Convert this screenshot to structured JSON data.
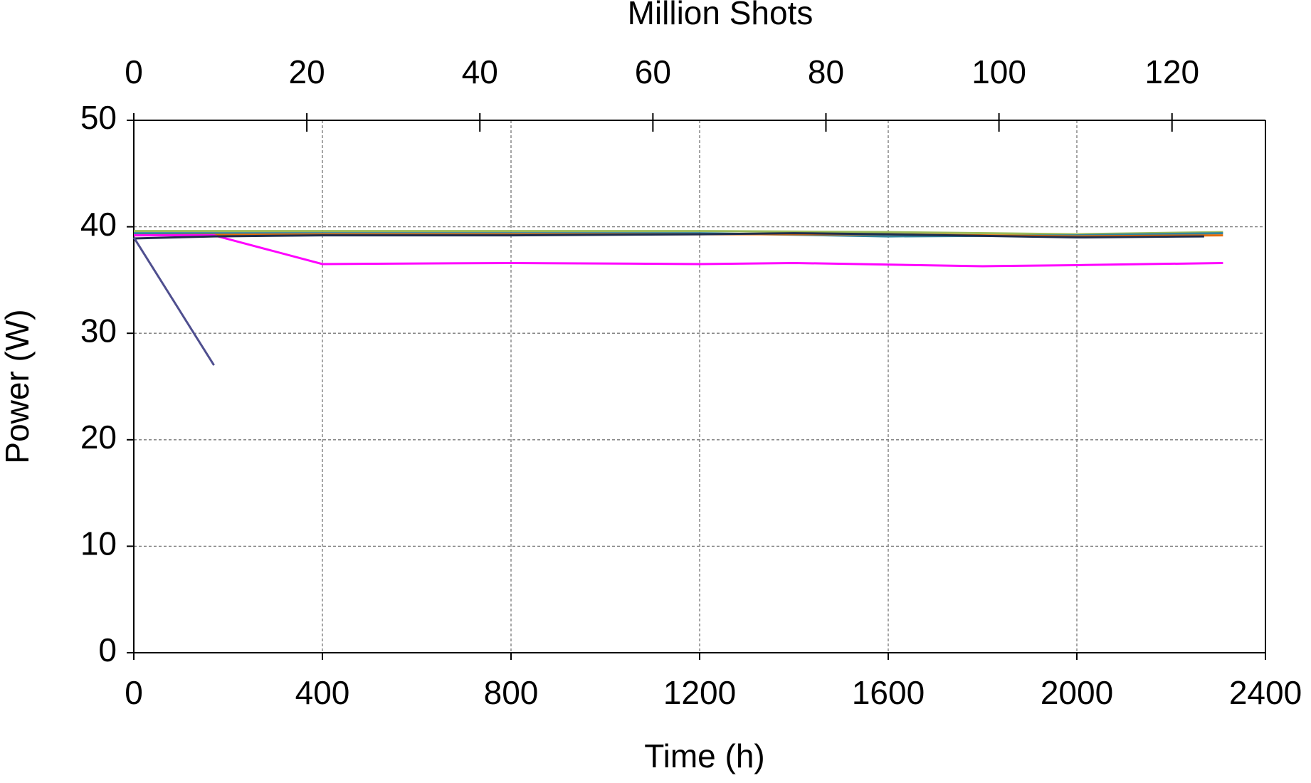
{
  "chart_data": {
    "type": "line",
    "x_label": "Time (h)",
    "y_label": "Power (W)",
    "x2_label": "Million Shots",
    "xlim": [
      0,
      2400
    ],
    "xticks": [
      0,
      400,
      800,
      1200,
      1600,
      2000,
      2400
    ],
    "x2lim": [
      0,
      130.8
    ],
    "x2ticks": [
      0,
      20,
      40,
      60,
      80,
      100,
      120
    ],
    "ylim": [
      0,
      50
    ],
    "yticks": [
      0,
      10,
      20,
      30,
      40,
      50
    ],
    "grid": true,
    "series": [
      {
        "color": "#9bbb59",
        "x": [
          0,
          400,
          800,
          1200,
          1600,
          2000,
          2310
        ],
        "values": [
          39.6,
          39.6,
          39.6,
          39.6,
          39.5,
          39.3,
          39.5
        ]
      },
      {
        "color": "#31859c",
        "x": [
          0,
          400,
          800,
          1200,
          1600,
          2000,
          2310
        ],
        "values": [
          39.4,
          39.4,
          39.4,
          39.4,
          39.1,
          39.2,
          39.4
        ]
      },
      {
        "color": "#e36c0a",
        "x": [
          0,
          400,
          800,
          1200,
          1600,
          2000,
          2310
        ],
        "values": [
          39.2,
          39.3,
          39.3,
          39.3,
          39.3,
          39.1,
          39.2
        ]
      },
      {
        "color": "#ff00ff",
        "x": [
          0,
          170,
          400,
          800,
          1200,
          1400,
          1800,
          2000,
          2310
        ],
        "values": [
          39.2,
          39.2,
          36.5,
          36.6,
          36.5,
          36.6,
          36.3,
          36.4,
          36.6
        ]
      },
      {
        "color": "#1f2d4d",
        "x": [
          0,
          170,
          400,
          800,
          1200,
          1400,
          1600,
          2000,
          2270
        ],
        "values": [
          38.9,
          39.1,
          39.2,
          39.2,
          39.3,
          39.4,
          39.3,
          39.0,
          39.1
        ]
      },
      {
        "color": "#4f4f8f",
        "x": [
          0,
          170
        ],
        "values": [
          39.0,
          27.0
        ]
      }
    ]
  }
}
